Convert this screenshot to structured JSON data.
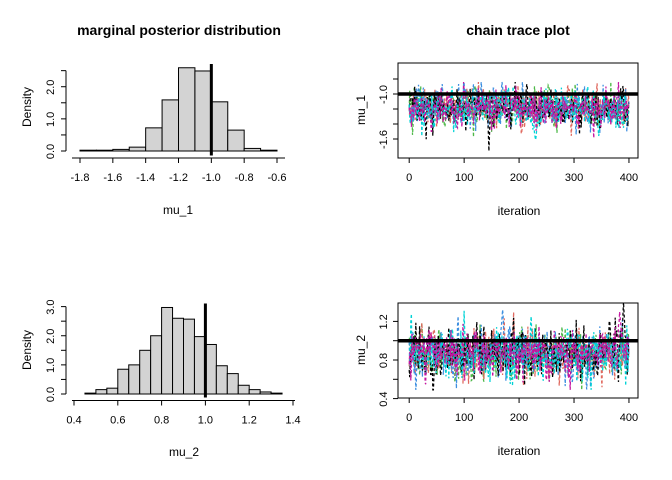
{
  "figure": {
    "kind": "R 2x2 plot grid: marginal posterior histograms and MCMC chain trace plots",
    "background": "#ffffff",
    "foreground": "#000000"
  },
  "chart_data": [
    {
      "type": "bar",
      "panel": "top-left",
      "title": "marginal posterior distribution",
      "xlabel": "mu_1",
      "ylabel": "Density",
      "bar_fill": "#d3d3d3",
      "bar_stroke": "#000000",
      "bin_start": -1.8,
      "bin_width": 0.1,
      "densities": [
        0.02,
        0.02,
        0.05,
        0.12,
        0.72,
        1.59,
        2.59,
        2.49,
        1.53,
        0.65,
        0.08,
        0.02
      ],
      "x_ticks": [
        {
          "v": -1.8,
          "label": "-1.8"
        },
        {
          "v": -1.6,
          "label": "-1.6"
        },
        {
          "v": -1.4,
          "label": "-1.4"
        },
        {
          "v": -1.2,
          "label": "-1.2"
        },
        {
          "v": -1.0,
          "label": "-1.0"
        },
        {
          "v": -0.8,
          "label": "-0.8"
        },
        {
          "v": -0.6,
          "label": "-0.6"
        }
      ],
      "y_ticks": [
        {
          "v": 0,
          "label": "0.0"
        },
        {
          "v": 0.5,
          "label": ""
        },
        {
          "v": 1,
          "label": "1.0"
        },
        {
          "v": 1.5,
          "label": ""
        },
        {
          "v": 2,
          "label": "2.0"
        },
        {
          "v": 2.5,
          "label": ""
        }
      ],
      "xlim": [
        -1.8,
        -0.6
      ],
      "ylim": [
        0,
        2.6
      ],
      "grid": false,
      "ref_line_x": -1.0,
      "ref_line_width": 3
    },
    {
      "type": "line",
      "panel": "top-right",
      "title": "chain trace plot",
      "xlabel": "iteration",
      "ylabel": "mu_1",
      "n_iterations": 400,
      "n_chains": 6,
      "chain_colors": [
        "#4db848",
        "#e0695f",
        "#3d8fe0",
        "#000000",
        "#00d3d6",
        "#c515a0"
      ],
      "line_style": "dashed",
      "mean": -1.18,
      "sd": 0.135,
      "clamp": [
        -1.64,
        -0.84
      ],
      "seed": 1234,
      "anomalies": [
        {
          "chain": 3,
          "iter": 145,
          "value": -1.76,
          "halfwidth": 2
        },
        {
          "chain": 4,
          "iter": 230,
          "value": -1.61,
          "halfwidth": 9
        },
        {
          "chain": 4,
          "iter": 345,
          "value": -1.56,
          "halfwidth": 5
        }
      ],
      "x_ticks": [
        {
          "v": 0,
          "label": "0"
        },
        {
          "v": 100,
          "label": "100"
        },
        {
          "v": 200,
          "label": "200"
        },
        {
          "v": 300,
          "label": "300"
        },
        {
          "v": 400,
          "label": "400"
        }
      ],
      "y_ticks": [
        {
          "v": -0.8,
          "label": ""
        },
        {
          "v": -1.0,
          "label": "-1.0"
        },
        {
          "v": -1.2,
          "label": ""
        },
        {
          "v": -1.4,
          "label": ""
        },
        {
          "v": -1.6,
          "label": "-1.6"
        }
      ],
      "xlim": [
        0,
        400
      ],
      "ylim": [
        -1.85,
        -0.6
      ],
      "grid": false,
      "ref_line_y": -1.0,
      "ref_line_width": 3.5
    },
    {
      "type": "bar",
      "panel": "bottom-left",
      "title": "",
      "xlabel": "mu_2",
      "ylabel": "Density",
      "bar_fill": "#d3d3d3",
      "bar_stroke": "#000000",
      "bin_start": 0.45,
      "bin_width": 0.05,
      "densities": [
        0.03,
        0.15,
        0.2,
        0.85,
        1.0,
        1.5,
        2.0,
        2.97,
        2.6,
        2.57,
        1.97,
        1.7,
        0.97,
        0.7,
        0.3,
        0.15,
        0.07,
        0.03
      ],
      "x_ticks": [
        {
          "v": 0.4,
          "label": "0.4"
        },
        {
          "v": 0.6,
          "label": "0.6"
        },
        {
          "v": 0.8,
          "label": "0.8"
        },
        {
          "v": 1.0,
          "label": "1.0"
        },
        {
          "v": 1.2,
          "label": "1.2"
        },
        {
          "v": 1.4,
          "label": "1.4"
        }
      ],
      "y_ticks": [
        {
          "v": 0,
          "label": "0.0"
        },
        {
          "v": 0.5,
          "label": ""
        },
        {
          "v": 1,
          "label": "1.0"
        },
        {
          "v": 1.5,
          "label": ""
        },
        {
          "v": 2,
          "label": "2.0"
        },
        {
          "v": 2.5,
          "label": ""
        },
        {
          "v": 3,
          "label": "3.0"
        }
      ],
      "xlim": [
        0.4,
        1.4
      ],
      "ylim": [
        0,
        3.0
      ],
      "grid": false,
      "ref_line_x": 1.0,
      "ref_line_width": 3
    },
    {
      "type": "line",
      "panel": "bottom-right",
      "title": "",
      "xlabel": "iteration",
      "ylabel": "mu_2",
      "n_iterations": 400,
      "n_chains": 6,
      "chain_colors": [
        "#4db848",
        "#e0695f",
        "#3d8fe0",
        "#000000",
        "#00d3d6",
        "#c515a0"
      ],
      "line_style": "dashed",
      "mean": 0.865,
      "sd": 0.14,
      "clamp": [
        0.49,
        1.31
      ],
      "seed": 777,
      "anomalies": [
        {
          "chain": 3,
          "iter": 390,
          "value": 1.4,
          "halfwidth": 4
        },
        {
          "chain": 2,
          "iter": 170,
          "value": 1.32,
          "halfwidth": 5
        },
        {
          "chain": 5,
          "iter": 383,
          "value": 1.3,
          "halfwidth": 4
        }
      ],
      "x_ticks": [
        {
          "v": 0,
          "label": "0"
        },
        {
          "v": 100,
          "label": "100"
        },
        {
          "v": 200,
          "label": "200"
        },
        {
          "v": 300,
          "label": "300"
        },
        {
          "v": 400,
          "label": "400"
        }
      ],
      "y_ticks": [
        {
          "v": 0.4,
          "label": "0.4"
        },
        {
          "v": 0.6,
          "label": ""
        },
        {
          "v": 0.8,
          "label": "0.8"
        },
        {
          "v": 1.0,
          "label": ""
        },
        {
          "v": 1.2,
          "label": "1.2"
        }
      ],
      "xlim": [
        0,
        400
      ],
      "ylim": [
        0.38,
        1.42
      ],
      "grid": false,
      "ref_line_y": 1.0,
      "ref_line_width": 3.5
    }
  ]
}
